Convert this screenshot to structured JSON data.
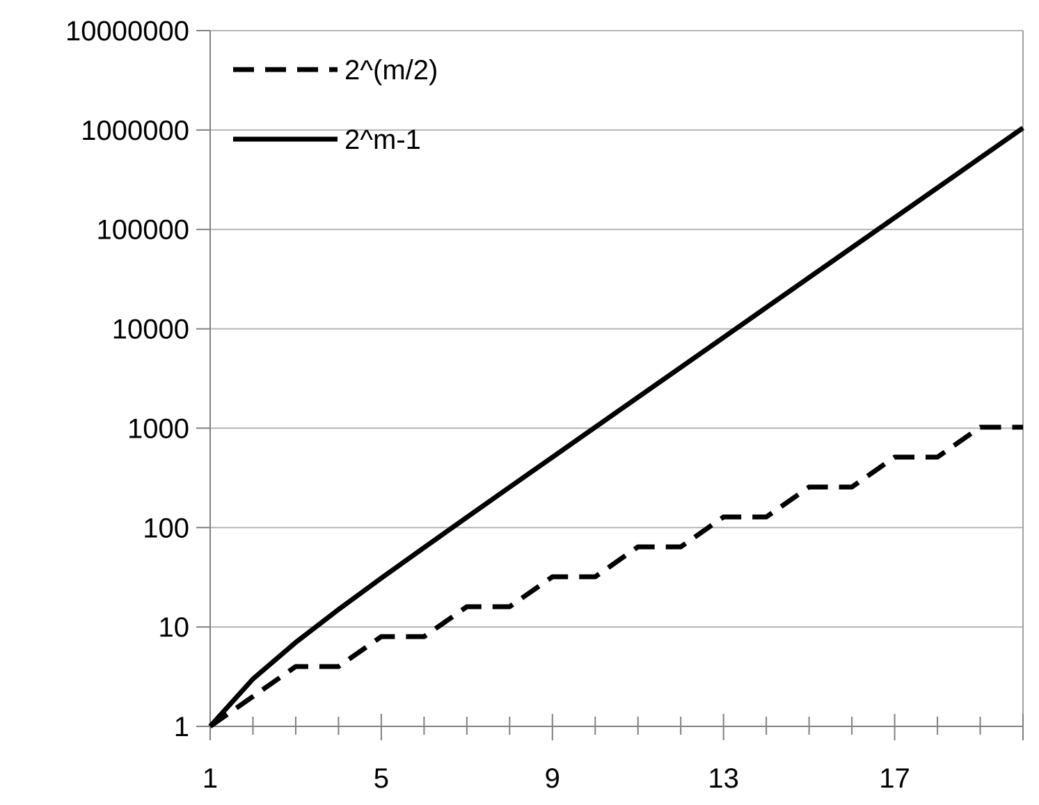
{
  "chart_data": {
    "type": "line",
    "y_scale": "log",
    "ylim": [
      1,
      10000000
    ],
    "xlim": [
      1,
      20
    ],
    "y_ticks": [
      "1",
      "10",
      "100",
      "1000",
      "10000",
      "100000",
      "1000000",
      "10000000"
    ],
    "y_tick_values": [
      1,
      10,
      100,
      1000,
      10000,
      100000,
      1000000,
      10000000
    ],
    "x_tick_labels": [
      "1",
      "5",
      "9",
      "13",
      "17"
    ],
    "x_tick_label_values": [
      1,
      5,
      9,
      13,
      17
    ],
    "x": [
      1,
      2,
      3,
      4,
      5,
      6,
      7,
      8,
      9,
      10,
      11,
      12,
      13,
      14,
      15,
      16,
      17,
      18,
      19,
      20
    ],
    "grid": "horizontal",
    "legend_position": "top-left",
    "series": [
      {
        "name": "2^(m/2)",
        "style": "dashed",
        "color": "#000000",
        "values": [
          1,
          2,
          4,
          4,
          8,
          8,
          16,
          16,
          32,
          32,
          64,
          64,
          128,
          128,
          256,
          256,
          512,
          512,
          1024,
          1024
        ]
      },
      {
        "name": "2^m-1",
        "style": "solid",
        "color": "#000000",
        "values": [
          1,
          3,
          7,
          15,
          31,
          63,
          127,
          255,
          511,
          1023,
          2047,
          4095,
          8191,
          16383,
          32767,
          65535,
          131071,
          262143,
          524287,
          1048575
        ]
      }
    ]
  }
}
